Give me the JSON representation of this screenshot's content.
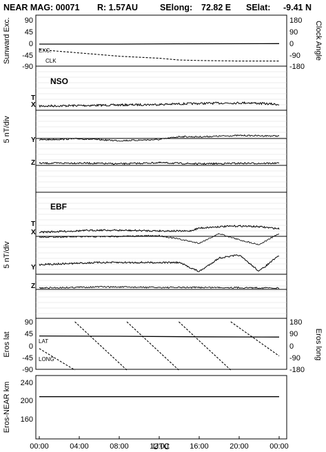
{
  "header": {
    "title": "NEAR MAG: 00071",
    "r": "R: 1.57AU",
    "selong_label": "SElong:",
    "selong_value": "72.82 E",
    "selat_label": "SElat:",
    "selat_value": "-9.41 N"
  },
  "chart_data": [
    {
      "type": "line",
      "name": "sunward-exc-clock",
      "ylabel_left": "Sunward Exc.",
      "ylabel_right": "Clock Angle",
      "yticks_left": [
        "90",
        "45",
        "0",
        "-45",
        "-90"
      ],
      "yticks_right": [
        "180",
        "90",
        "0",
        "-90",
        "-180"
      ],
      "ylim_left": [
        -90,
        90
      ],
      "ylim_right": [
        -180,
        180
      ],
      "series": [
        {
          "name": "EXC.",
          "axis": "left",
          "style": "solid",
          "x": [
            0,
            8,
            14,
            24
          ],
          "y": [
            0,
            0,
            1,
            2
          ]
        },
        {
          "name": "CLK",
          "axis": "right",
          "style": "dashed",
          "x": [
            0,
            4,
            8,
            12,
            14,
            16,
            20,
            24
          ],
          "y": [
            -44,
            -70,
            -96,
            -112,
            -126,
            -130,
            -134,
            -134
          ]
        }
      ]
    },
    {
      "type": "line",
      "name": "nso-components",
      "title": "NSO",
      "ylabel": "5 nT/div",
      "components": [
        "T",
        "X",
        "Y",
        "Z"
      ],
      "grid": true,
      "series": [
        {
          "name": "T",
          "trace": "noise",
          "x": [
            0,
            6,
            10,
            12,
            15,
            18,
            21,
            24
          ],
          "y": [
            0.0,
            0.3,
            0.5,
            0.6,
            0.9,
            1.1,
            1.2,
            0.6
          ]
        },
        {
          "name": "Y",
          "trace": "noise",
          "x": [
            0,
            4,
            8,
            12,
            14,
            16,
            20,
            24
          ],
          "y": [
            0.0,
            0.4,
            -0.3,
            0.1,
            1.2,
            1.1,
            1.6,
            1.4
          ]
        },
        {
          "name": "Z",
          "trace": "noise",
          "x": [
            0,
            4,
            8,
            12,
            16,
            20,
            24
          ],
          "y": [
            0.0,
            0.1,
            -0.2,
            0.2,
            -0.2,
            0.0,
            0.0
          ]
        }
      ]
    },
    {
      "type": "line",
      "name": "ebf-components",
      "title": "EBF",
      "ylabel": "5 nT/div",
      "components": [
        "T",
        "X",
        "Y",
        "Z"
      ],
      "grid": true,
      "series": [
        {
          "name": "T",
          "trace": "noise",
          "x": [
            0,
            6,
            12,
            15,
            16,
            18,
            20,
            22,
            24
          ],
          "y": [
            0.0,
            0.6,
            0.4,
            0.3,
            1.2,
            1.6,
            1.8,
            1.6,
            1.0
          ]
        },
        {
          "name": "X",
          "trace": "noise",
          "x": [
            0,
            6,
            12,
            14,
            16,
            18,
            20,
            22,
            24
          ],
          "y": [
            -0.4,
            -0.3,
            0.0,
            -1.0,
            -2.2,
            0.6,
            -1.2,
            -2.6,
            0.6
          ]
        },
        {
          "name": "Y",
          "trace": "noise",
          "x": [
            0,
            6,
            12,
            14,
            16,
            18,
            20,
            22,
            24
          ],
          "y": [
            0.0,
            0.5,
            0.5,
            0.5,
            -1.7,
            1.6,
            2.3,
            -1.6,
            2.2
          ]
        },
        {
          "name": "Z",
          "trace": "noise",
          "x": [
            0,
            6,
            12,
            18,
            24
          ],
          "y": [
            0.0,
            0.4,
            0.2,
            0.2,
            0.0
          ]
        }
      ]
    },
    {
      "type": "line",
      "name": "eros-lat-long",
      "ylabel_left": "Eros lat",
      "ylabel_right": "Eros long",
      "yticks_left": [
        "90",
        "45",
        "0",
        "-45",
        "-90"
      ],
      "yticks_right": [
        "180",
        "90",
        "0",
        "-90",
        "-180"
      ],
      "ylim_left": [
        -90,
        90
      ],
      "ylim_right": [
        -180,
        180
      ],
      "series": [
        {
          "name": "LAT",
          "axis": "left",
          "style": "solid",
          "x": [
            0,
            8,
            16,
            24
          ],
          "y": [
            37,
            36,
            34,
            33
          ]
        },
        {
          "name": "LONG",
          "axis": "right",
          "style": "dashed",
          "x": [
            0,
            3.55,
            3.56,
            8.75,
            8.76,
            13.95,
            13.96,
            19.15,
            19.16,
            24
          ],
          "y": [
            -20,
            -180,
            180,
            -180,
            180,
            -180,
            180,
            -180,
            180,
            -75
          ]
        }
      ]
    },
    {
      "type": "line",
      "name": "eros-near-distance",
      "ylabel": "Eros-NEAR km",
      "yticks": [
        "240",
        "200",
        "160"
      ],
      "ylim": [
        120,
        260
      ],
      "xticks": [
        "00:00",
        "04:00",
        "08:00",
        "12:00",
        "16:00",
        "20:00",
        "00:00"
      ],
      "xlabel": "UTC",
      "series": [
        {
          "name": "distance",
          "x": [
            0,
            24
          ],
          "y": [
            208,
            208
          ]
        }
      ]
    }
  ]
}
